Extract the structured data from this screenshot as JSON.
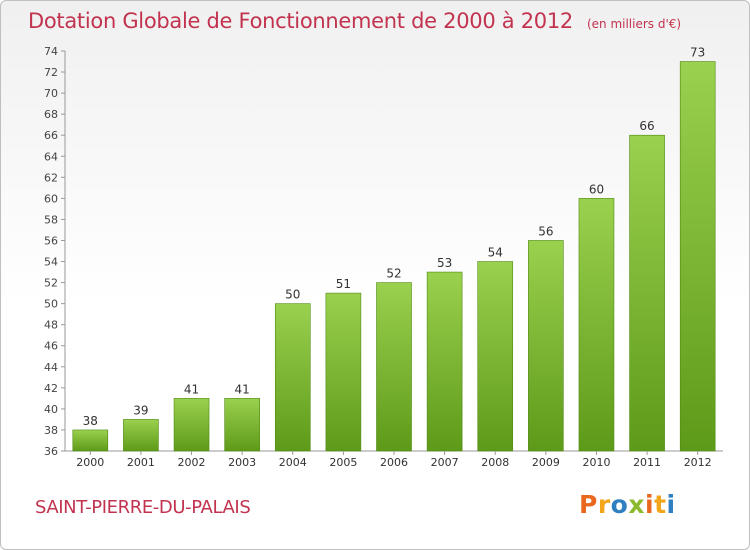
{
  "header": {
    "title": "Dotation Globale de Fonctionnement de 2000 à 2012",
    "unit": "(en milliers d'€)"
  },
  "footer": {
    "commune": "SAINT-PIERRE-DU-PALAIS",
    "logo_letters": [
      "P",
      "r",
      "o",
      "x",
      "i",
      "t",
      "i"
    ],
    "logo_colors": [
      "#e9671f",
      "#f3a51c",
      "#2f7fc1",
      "#8bbb2c",
      "#e9671f",
      "#f3a51c",
      "#2f7fc1"
    ]
  },
  "chart_data": {
    "type": "bar",
    "title": "Dotation Globale de Fonctionnement de 2000 à 2012",
    "unit": "(en milliers d'€)",
    "categories": [
      "2000",
      "2001",
      "2002",
      "2003",
      "2004",
      "2005",
      "2006",
      "2007",
      "2008",
      "2009",
      "2010",
      "2011",
      "2012"
    ],
    "values": [
      38,
      39,
      41,
      41,
      50,
      51,
      52,
      53,
      54,
      56,
      60,
      66,
      73
    ],
    "ylim": [
      36,
      74
    ],
    "ytick_step": 2,
    "grid": false,
    "bar_colors": {
      "top": "#9ad14e",
      "bottom": "#5e9a19"
    }
  }
}
